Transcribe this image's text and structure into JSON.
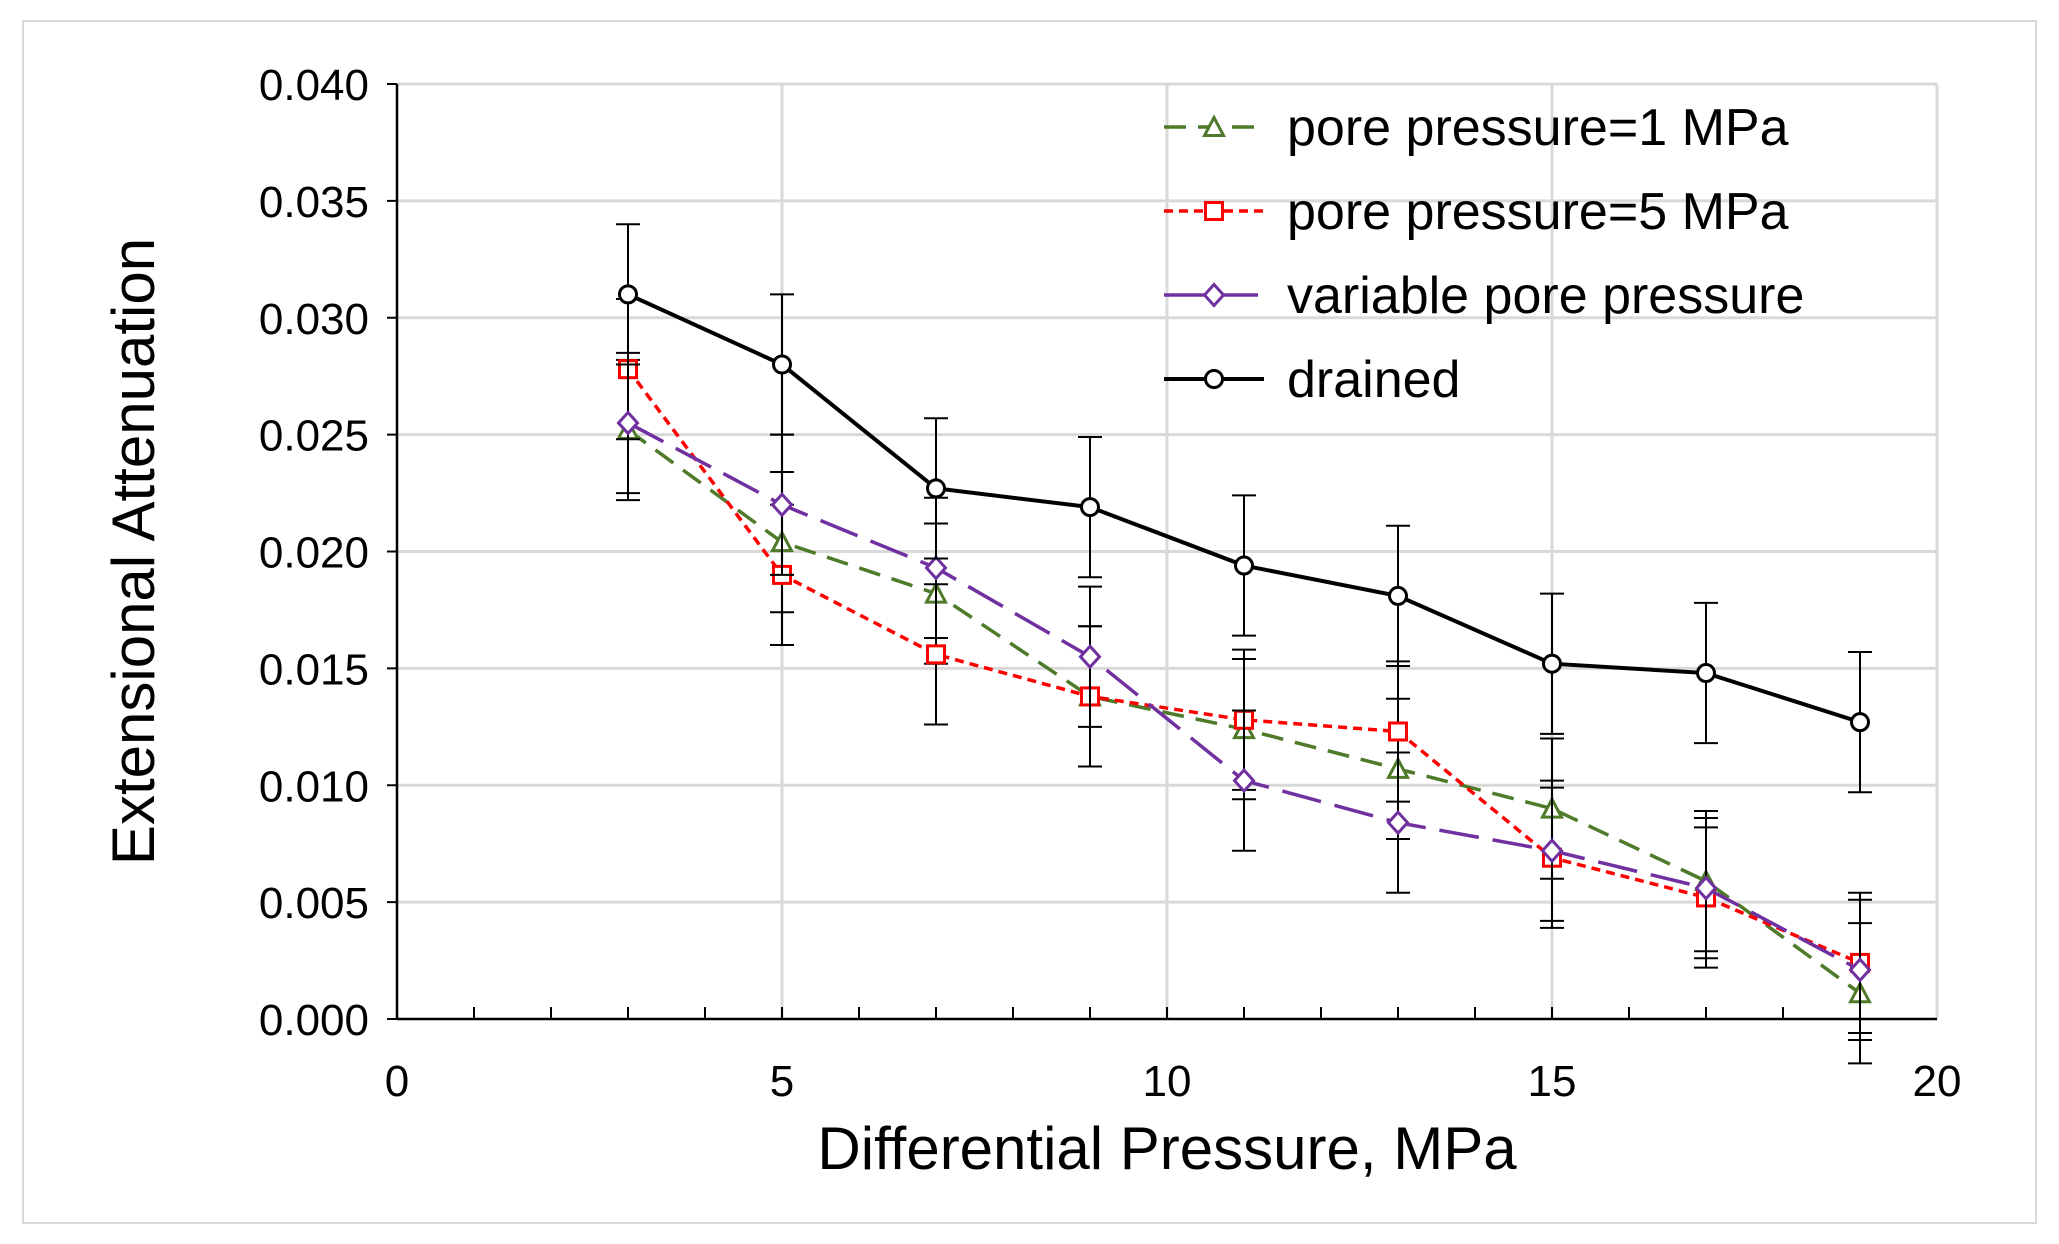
{
  "chart_data": {
    "type": "line",
    "title": "",
    "xlabel": "Differential Pressure, MPa",
    "ylabel": "Extensional Attenuation",
    "xlim": [
      0,
      20
    ],
    "ylim": [
      0,
      0.04
    ],
    "xticks": [
      0,
      5,
      10,
      15,
      20
    ],
    "xtick_labels": [
      "0",
      "5",
      "10",
      "15",
      "20"
    ],
    "yticks": [
      0,
      0.005,
      0.01,
      0.015,
      0.02,
      0.025,
      0.03,
      0.035,
      0.04
    ],
    "ytick_labels": [
      "0.000",
      "0.005",
      "0.010",
      "0.015",
      "0.020",
      "0.025",
      "0.030",
      "0.035",
      "0.040"
    ],
    "grid": true,
    "legend_position": "top-right",
    "series": [
      {
        "name": "pore pressure=1 MPa",
        "color": "#4e7a2a",
        "marker": "triangle",
        "line_style": "dashed",
        "x": [
          3,
          5,
          7,
          9,
          11,
          13,
          15,
          17,
          19
        ],
        "y": [
          0.0252,
          0.0204,
          0.0182,
          0.0138,
          0.0124,
          0.0107,
          0.009,
          0.0059,
          0.0011
        ],
        "error": [
          0.003,
          0.003,
          0.003,
          0.003,
          0.003,
          0.003,
          0.003,
          0.003,
          0.003
        ]
      },
      {
        "name": "pore pressure=5 MPa",
        "color": "#ff0000",
        "marker": "square",
        "line_style": "dotted",
        "x": [
          3,
          5,
          7,
          9,
          11,
          13,
          15,
          17,
          19
        ],
        "y": [
          0.0278,
          0.019,
          0.0156,
          0.0138,
          0.0128,
          0.0123,
          0.0069,
          0.0052,
          0.0024
        ],
        "error": [
          0.003,
          0.003,
          0.003,
          0.003,
          0.003,
          0.003,
          0.003,
          0.003,
          0.003
        ]
      },
      {
        "name": "variable pore pressure",
        "color": "#7030a0",
        "marker": "diamond",
        "line_style": "long-dash",
        "x": [
          3,
          5,
          7,
          9,
          11,
          13,
          15,
          17,
          19
        ],
        "y": [
          0.0255,
          0.022,
          0.0193,
          0.0155,
          0.0102,
          0.0084,
          0.0072,
          0.0056,
          0.0021
        ],
        "error": [
          0.003,
          0.003,
          0.003,
          0.003,
          0.003,
          0.003,
          0.003,
          0.003,
          0.003
        ]
      },
      {
        "name": "drained",
        "color": "#000000",
        "marker": "circle",
        "line_style": "solid",
        "x": [
          3,
          5,
          7,
          9,
          11,
          13,
          15,
          17,
          19
        ],
        "y": [
          0.031,
          0.028,
          0.0227,
          0.0219,
          0.0194,
          0.0181,
          0.0152,
          0.0148,
          0.0127
        ],
        "error": [
          0.003,
          0.003,
          0.003,
          0.003,
          0.003,
          0.003,
          0.003,
          0.003,
          0.003
        ]
      }
    ]
  }
}
